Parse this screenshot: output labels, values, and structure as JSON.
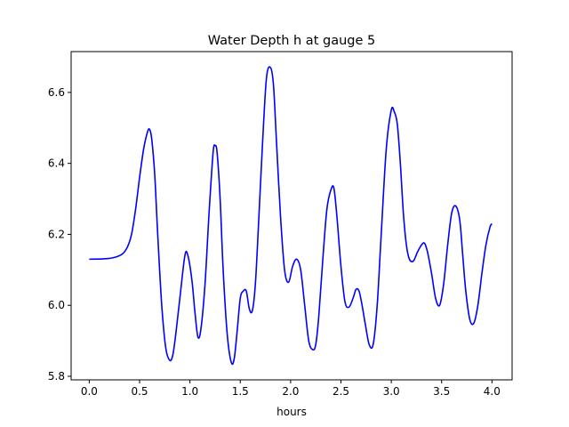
{
  "chart_data": {
    "type": "line",
    "title": "Water Depth h at gauge 5",
    "xlabel": "hours",
    "ylabel": "",
    "xlim": [
      -0.18,
      4.2
    ],
    "ylim": [
      5.79,
      6.715
    ],
    "xticks": [
      0.0,
      0.5,
      1.0,
      1.5,
      2.0,
      2.5,
      3.0,
      3.5,
      4.0
    ],
    "xtick_labels": [
      "0.0",
      "0.5",
      "1.0",
      "1.5",
      "2.0",
      "2.5",
      "3.0",
      "3.5",
      "4.0"
    ],
    "yticks": [
      5.8,
      6.0,
      6.2,
      6.4,
      6.6
    ],
    "ytick_labels": [
      "5.8",
      "6.0",
      "6.2",
      "6.4",
      "6.6"
    ],
    "grid": false,
    "legend": "none",
    "series": [
      {
        "color": "#0000ff",
        "x": [
          0.0,
          0.15,
          0.25,
          0.33,
          0.38,
          0.42,
          0.46,
          0.5,
          0.54,
          0.58,
          0.6,
          0.62,
          0.65,
          0.68,
          0.72,
          0.76,
          0.8,
          0.83,
          0.86,
          0.9,
          0.95,
          0.98,
          1.02,
          1.05,
          1.08,
          1.11,
          1.15,
          1.19,
          1.23,
          1.25,
          1.27,
          1.3,
          1.33,
          1.37,
          1.41,
          1.44,
          1.47,
          1.5,
          1.53,
          1.56,
          1.59,
          1.62,
          1.65,
          1.68,
          1.72,
          1.76,
          1.8,
          1.83,
          1.86,
          1.9,
          1.94,
          1.98,
          2.02,
          2.06,
          2.1,
          2.14,
          2.18,
          2.22,
          2.25,
          2.28,
          2.32,
          2.36,
          2.4,
          2.43,
          2.46,
          2.5,
          2.54,
          2.58,
          2.62,
          2.65,
          2.68,
          2.71,
          2.74,
          2.78,
          2.82,
          2.86,
          2.9,
          2.95,
          3.0,
          3.03,
          3.06,
          3.09,
          3.12,
          3.15,
          3.18,
          3.22,
          3.26,
          3.3,
          3.33,
          3.36,
          3.4,
          3.44,
          3.48,
          3.52,
          3.56,
          3.6,
          3.64,
          3.68,
          3.71,
          3.74,
          3.78,
          3.82,
          3.86,
          3.9,
          3.94,
          3.98,
          4.0
        ],
        "y": [
          6.13,
          6.131,
          6.135,
          6.145,
          6.165,
          6.2,
          6.27,
          6.36,
          6.44,
          6.49,
          6.495,
          6.47,
          6.37,
          6.2,
          6.0,
          5.88,
          5.845,
          5.86,
          5.92,
          6.02,
          6.14,
          6.14,
          6.07,
          5.98,
          5.91,
          5.935,
          6.06,
          6.26,
          6.43,
          6.45,
          6.43,
          6.3,
          6.1,
          5.92,
          5.84,
          5.85,
          5.93,
          6.02,
          6.04,
          6.04,
          5.99,
          5.985,
          6.06,
          6.22,
          6.45,
          6.64,
          6.67,
          6.62,
          6.46,
          6.25,
          6.1,
          6.065,
          6.11,
          6.13,
          6.1,
          6.0,
          5.9,
          5.875,
          5.89,
          5.97,
          6.13,
          6.27,
          6.325,
          6.33,
          6.25,
          6.11,
          6.01,
          5.995,
          6.02,
          6.045,
          6.04,
          6.0,
          5.95,
          5.89,
          5.89,
          6.0,
          6.2,
          6.44,
          6.55,
          6.545,
          6.51,
          6.4,
          6.26,
          6.17,
          6.13,
          6.125,
          6.15,
          6.17,
          6.175,
          6.15,
          6.09,
          6.02,
          6.0,
          6.06,
          6.17,
          6.26,
          6.28,
          6.24,
          6.14,
          6.04,
          5.96,
          5.95,
          6.0,
          6.09,
          6.17,
          6.22,
          6.23
        ]
      }
    ]
  }
}
